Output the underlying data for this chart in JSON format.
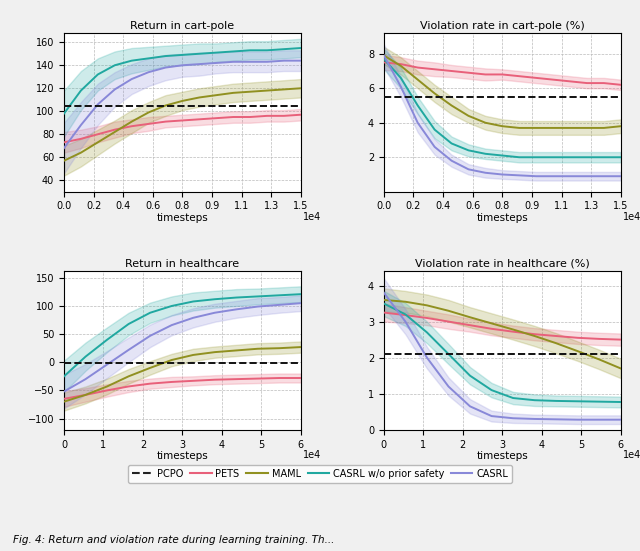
{
  "titles": [
    "Return in cart-pole",
    "Violation rate in cart-pole (%)",
    "Return in healthcare",
    "Violation rate in healthcare (%)"
  ],
  "legend_labels": [
    "PCPO",
    "PETS",
    "MAML",
    "CASRL w/o prior safety",
    "CASRL"
  ],
  "colors": {
    "PCPO": "#222222",
    "PETS": "#e8607a",
    "MAML": "#909020",
    "CASRL_wo": "#20a8a0",
    "CASRL": "#8888d8"
  },
  "cartpole_return": {
    "x_max": 15000,
    "ylim": [
      30,
      168
    ],
    "yticks": [
      40,
      60,
      80,
      100,
      120,
      140,
      160
    ],
    "hline": 105,
    "PETS_mean": [
      73,
      76,
      80,
      84,
      87,
      89,
      91,
      92,
      93,
      94,
      95,
      95,
      96,
      96,
      97
    ],
    "PETS_std": [
      9,
      8,
      7,
      7,
      6,
      6,
      5,
      5,
      5,
      5,
      5,
      5,
      5,
      5,
      5
    ],
    "MAML_mean": [
      57,
      64,
      73,
      82,
      91,
      99,
      105,
      109,
      112,
      114,
      116,
      117,
      118,
      119,
      120
    ],
    "MAML_std": [
      13,
      12,
      11,
      10,
      10,
      9,
      9,
      8,
      8,
      8,
      8,
      8,
      8,
      8,
      8
    ],
    "CASRL_wo_mean": [
      98,
      118,
      132,
      140,
      144,
      146,
      148,
      149,
      150,
      151,
      152,
      153,
      153,
      154,
      155
    ],
    "CASRL_wo_std": [
      20,
      17,
      14,
      12,
      11,
      10,
      9,
      9,
      9,
      8,
      8,
      8,
      8,
      8,
      8
    ],
    "CASRL_mean": [
      68,
      88,
      106,
      119,
      128,
      134,
      138,
      140,
      141,
      142,
      143,
      143,
      143,
      144,
      144
    ],
    "CASRL_std": [
      22,
      20,
      18,
      15,
      13,
      12,
      11,
      10,
      10,
      9,
      9,
      9,
      9,
      9,
      9
    ]
  },
  "cartpole_violation": {
    "x_max": 15000,
    "ylim": [
      0,
      9.2
    ],
    "yticks": [
      2,
      4,
      6,
      8
    ],
    "hline": 5.5,
    "PETS_mean": [
      7.5,
      7.4,
      7.2,
      7.1,
      7.0,
      6.9,
      6.8,
      6.8,
      6.7,
      6.6,
      6.5,
      6.4,
      6.3,
      6.3,
      6.2
    ],
    "PETS_std": [
      0.45,
      0.4,
      0.4,
      0.4,
      0.35,
      0.35,
      0.35,
      0.3,
      0.3,
      0.3,
      0.3,
      0.3,
      0.3,
      0.3,
      0.3
    ],
    "MAML_mean": [
      7.9,
      7.3,
      6.5,
      5.7,
      5.0,
      4.4,
      4.0,
      3.8,
      3.7,
      3.7,
      3.7,
      3.7,
      3.7,
      3.7,
      3.8
    ],
    "MAML_std": [
      0.5,
      0.5,
      0.5,
      0.5,
      0.5,
      0.4,
      0.4,
      0.4,
      0.4,
      0.4,
      0.4,
      0.4,
      0.4,
      0.4,
      0.4
    ],
    "CASRL_wo_mean": [
      7.7,
      6.6,
      5.0,
      3.6,
      2.8,
      2.4,
      2.2,
      2.1,
      2.0,
      2.0,
      2.0,
      2.0,
      2.0,
      2.0,
      2.0
    ],
    "CASRL_wo_std": [
      0.6,
      0.6,
      0.5,
      0.5,
      0.4,
      0.35,
      0.3,
      0.3,
      0.3,
      0.3,
      0.3,
      0.3,
      0.3,
      0.3,
      0.3
    ],
    "CASRL_mean": [
      7.9,
      6.1,
      4.0,
      2.6,
      1.8,
      1.3,
      1.1,
      1.0,
      0.95,
      0.9,
      0.9,
      0.9,
      0.9,
      0.9,
      0.9
    ],
    "CASRL_std": [
      0.65,
      0.6,
      0.55,
      0.45,
      0.35,
      0.3,
      0.28,
      0.25,
      0.25,
      0.25,
      0.25,
      0.25,
      0.25,
      0.25,
      0.25
    ]
  },
  "healthcare_return": {
    "x_max": 60000,
    "ylim": [
      -120,
      162
    ],
    "yticks": [
      -100,
      -50,
      0,
      50,
      100,
      150
    ],
    "hline": -2,
    "PETS_mean": [
      -65,
      -58,
      -50,
      -43,
      -38,
      -35,
      -33,
      -31,
      -30,
      -29,
      -28,
      -28
    ],
    "PETS_std": [
      14,
      12,
      11,
      10,
      9,
      9,
      8,
      8,
      8,
      8,
      8,
      8
    ],
    "MAML_mean": [
      -70,
      -58,
      -43,
      -25,
      -10,
      4,
      13,
      18,
      21,
      24,
      25,
      27
    ],
    "MAML_std": [
      16,
      15,
      14,
      13,
      12,
      11,
      11,
      10,
      10,
      10,
      10,
      10
    ],
    "CASRL_wo_mean": [
      -25,
      10,
      40,
      68,
      88,
      100,
      108,
      112,
      115,
      117,
      119,
      121
    ],
    "CASRL_wo_std": [
      28,
      25,
      22,
      20,
      18,
      17,
      16,
      15,
      15,
      14,
      14,
      14
    ],
    "CASRL_mean": [
      -52,
      -30,
      -4,
      22,
      47,
      66,
      79,
      88,
      94,
      99,
      102,
      105
    ],
    "CASRL_std": [
      30,
      27,
      24,
      22,
      20,
      18,
      17,
      16,
      15,
      15,
      14,
      14
    ]
  },
  "healthcare_violation": {
    "x_max": 60000,
    "ylim": [
      0,
      4.4
    ],
    "yticks": [
      0,
      1,
      2,
      3,
      4
    ],
    "hline": 2.1,
    "PETS_mean": [
      3.25,
      3.18,
      3.1,
      3.0,
      2.9,
      2.8,
      2.72,
      2.65,
      2.6,
      2.55,
      2.52,
      2.5
    ],
    "PETS_std": [
      0.25,
      0.22,
      0.2,
      0.2,
      0.18,
      0.18,
      0.17,
      0.17,
      0.17,
      0.17,
      0.17,
      0.17
    ],
    "MAML_mean": [
      3.6,
      3.55,
      3.45,
      3.3,
      3.12,
      2.95,
      2.78,
      2.6,
      2.4,
      2.18,
      1.95,
      1.7
    ],
    "MAML_std": [
      0.32,
      0.3,
      0.3,
      0.3,
      0.28,
      0.28,
      0.28,
      0.28,
      0.28,
      0.27,
      0.27,
      0.27
    ],
    "CASRL_wo_mean": [
      3.5,
      3.2,
      2.7,
      2.1,
      1.5,
      1.1,
      0.88,
      0.82,
      0.8,
      0.79,
      0.78,
      0.77
    ],
    "CASRL_wo_std": [
      0.35,
      0.32,
      0.3,
      0.28,
      0.24,
      0.2,
      0.17,
      0.16,
      0.15,
      0.15,
      0.15,
      0.15
    ],
    "CASRL_mean": [
      3.8,
      3.0,
      2.0,
      1.2,
      0.65,
      0.38,
      0.32,
      0.3,
      0.29,
      0.28,
      0.28,
      0.28
    ],
    "CASRL_std": [
      0.4,
      0.35,
      0.3,
      0.25,
      0.2,
      0.15,
      0.13,
      0.12,
      0.12,
      0.12,
      0.12,
      0.12
    ]
  },
  "xlabel": "timesteps",
  "fig_caption": "Fig. 4: Return and violation rate during learning training. Th..."
}
